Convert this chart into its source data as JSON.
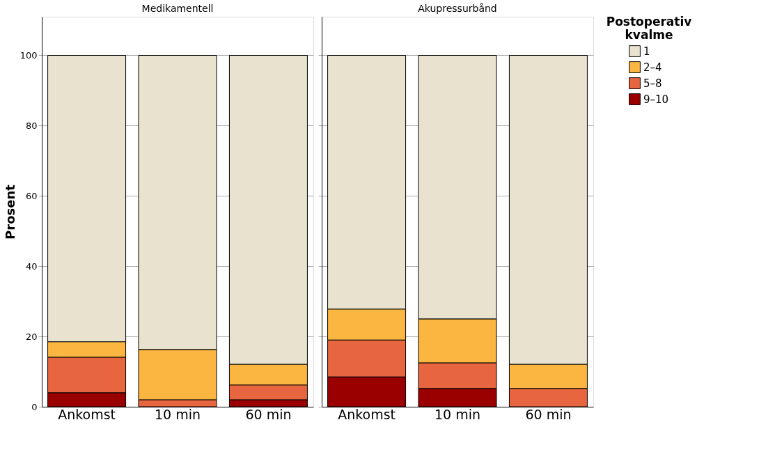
{
  "chart_data": [
    {
      "type": "bar",
      "title": "Medikamentell",
      "ylabel": "Prosent",
      "legend_title": "Postoperativ kvalme",
      "legend": "top right",
      "categories": [
        "Ankomst",
        "10 min",
        "60 min"
      ],
      "stacked": true,
      "ylim": [
        0,
        111
      ],
      "yticks": [
        0,
        20,
        40,
        60,
        80,
        100
      ],
      "grid": "y",
      "series": [
        {
          "name": "9–10",
          "color": "#9b0000",
          "values": [
            4.0,
            0,
            2.0
          ]
        },
        {
          "name": "5–8",
          "color": "#e8663f",
          "values": [
            10.1,
            2.0,
            4.2
          ]
        },
        {
          "name": "2–4",
          "color": "#fbb642",
          "values": [
            4.4,
            14.3,
            5.9
          ]
        },
        {
          "name": "1",
          "color": "#e8e2cf",
          "values": [
            81.5,
            83.7,
            87.9
          ]
        }
      ]
    },
    {
      "type": "bar",
      "title": "Akupressurbånd",
      "categories": [
        "Ankomst",
        "10 min",
        "60 min"
      ],
      "stacked": true,
      "ylim": [
        0,
        111
      ],
      "yticks": [
        0,
        20,
        40,
        60,
        80,
        100
      ],
      "grid": "y",
      "tick_labels": "x",
      "series": [
        {
          "name": "9–10",
          "color": "#9b0000",
          "values": [
            8.5,
            5.2,
            0
          ]
        },
        {
          "name": "5–8",
          "color": "#e8663f",
          "values": [
            10.5,
            7.3,
            5.2
          ]
        },
        {
          "name": "2–4",
          "color": "#fbb642",
          "values": [
            8.8,
            12.5,
            6.9
          ]
        },
        {
          "name": "1",
          "color": "#e8e2cf",
          "values": [
            72.2,
            75.0,
            87.9
          ]
        }
      ]
    }
  ]
}
